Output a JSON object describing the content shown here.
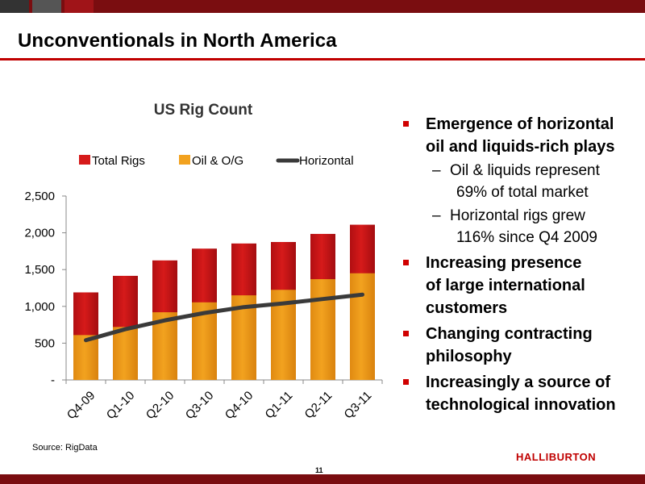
{
  "slide": {
    "title": "Unconventionals in North America",
    "source": "Source: RigData",
    "page_number": "11",
    "logo_text": "HALLIBURTON"
  },
  "colors": {
    "band": "#7a0d10",
    "accent": "#c00000",
    "total_rigs": "#d61a1a",
    "oil_og": "#f2a21f",
    "horizontal": "#3a3a3a"
  },
  "chart_data": {
    "type": "bar",
    "title": "US Rig Count",
    "categories": [
      "Q4-09",
      "Q1-10",
      "Q2-10",
      "Q3-10",
      "Q4-10",
      "Q1-11",
      "Q2-11",
      "Q3-11"
    ],
    "series": [
      {
        "name": "Total Rigs",
        "kind": "bar",
        "values": [
          1190,
          1415,
          1625,
          1785,
          1855,
          1875,
          1985,
          2110
        ]
      },
      {
        "name": "Oil & O/G",
        "kind": "bar",
        "values": [
          610,
          720,
          920,
          1055,
          1150,
          1225,
          1370,
          1450
        ]
      },
      {
        "name": "Horizontal",
        "kind": "line",
        "values": [
          540,
          690,
          810,
          910,
          990,
          1040,
          1100,
          1160
        ]
      }
    ],
    "ylim": [
      0,
      2500
    ],
    "yticks": [
      "-",
      "500",
      "1,000",
      "1,500",
      "2,000",
      "2,500"
    ],
    "ytick_values": [
      0,
      500,
      1000,
      1500,
      2000,
      2500
    ],
    "legend_position": "top",
    "grid": false,
    "xlabel": "",
    "ylabel": ""
  },
  "bullets": [
    {
      "text_lines": [
        "Emergence of horizontal",
        "oil and liquids-rich plays"
      ],
      "sub": [
        {
          "lines": [
            "Oil & liquids represent",
            "69% of total market"
          ]
        },
        {
          "lines": [
            "Horizontal rigs grew",
            "116% since Q4 2009"
          ]
        }
      ]
    },
    {
      "text_lines": [
        "Increasing presence",
        "of large international",
        "customers"
      ],
      "sub": []
    },
    {
      "text_lines": [
        "Changing contracting",
        "philosophy"
      ],
      "sub": []
    },
    {
      "text_lines": [
        "Increasingly a source of",
        "technological innovation"
      ],
      "sub": []
    }
  ]
}
